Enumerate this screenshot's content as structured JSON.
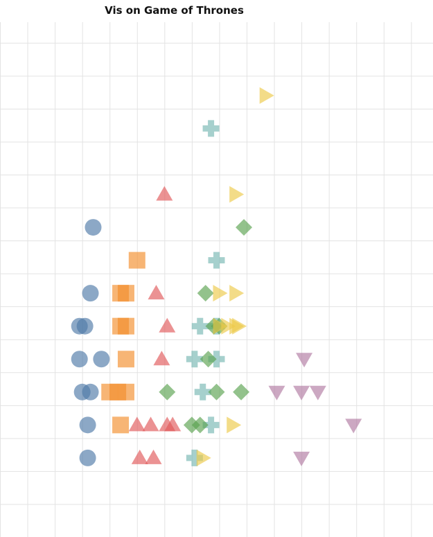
{
  "chart_data": {
    "type": "scatter",
    "title": "Vis on Game of Thrones",
    "xlabel": "",
    "ylabel": "",
    "grid": true,
    "xlim": [
      0,
      15.8
    ],
    "ylim": [
      0,
      16.3
    ],
    "series": [
      {
        "marker": "circle",
        "color": "#4e79a7",
        "points": [
          [
            3.2,
            2.4
          ],
          [
            3.2,
            3.4
          ],
          [
            3.0,
            4.4
          ],
          [
            3.3,
            4.4
          ],
          [
            2.9,
            5.4
          ],
          [
            3.7,
            5.4
          ],
          [
            2.9,
            6.4
          ],
          [
            3.1,
            6.4
          ],
          [
            3.3,
            7.4
          ],
          [
            3.4,
            9.4
          ]
        ]
      },
      {
        "marker": "square",
        "color": "#f28e2b",
        "points": [
          [
            4.4,
            3.4
          ],
          [
            4.0,
            4.4
          ],
          [
            4.3,
            4.4
          ],
          [
            4.6,
            4.4
          ],
          [
            4.6,
            5.4
          ],
          [
            4.4,
            6.4
          ],
          [
            4.6,
            6.4
          ],
          [
            4.4,
            7.4
          ],
          [
            4.6,
            7.4
          ],
          [
            5.0,
            8.4
          ]
        ]
      },
      {
        "marker": "triangle-up",
        "color": "#e15759",
        "points": [
          [
            5.1,
            2.4
          ],
          [
            5.6,
            2.4
          ],
          [
            5.0,
            3.4
          ],
          [
            5.5,
            3.4
          ],
          [
            6.1,
            3.4
          ],
          [
            6.3,
            3.4
          ],
          [
            5.9,
            5.4
          ],
          [
            6.1,
            6.4
          ],
          [
            5.7,
            7.4
          ],
          [
            6.0,
            10.4
          ]
        ]
      },
      {
        "marker": "plus",
        "color": "#76b7b2",
        "points": [
          [
            7.1,
            2.4
          ],
          [
            7.7,
            3.4
          ],
          [
            7.4,
            4.4
          ],
          [
            7.1,
            5.4
          ],
          [
            7.9,
            5.4
          ],
          [
            7.3,
            6.4
          ],
          [
            7.9,
            6.4
          ],
          [
            7.9,
            8.4
          ],
          [
            7.7,
            12.4
          ]
        ]
      },
      {
        "marker": "diamond",
        "color": "#59a14f",
        "points": [
          [
            6.1,
            4.4
          ],
          [
            7.0,
            3.4
          ],
          [
            7.3,
            3.4
          ],
          [
            7.9,
            4.4
          ],
          [
            8.8,
            4.4
          ],
          [
            7.6,
            5.4
          ],
          [
            7.8,
            6.4
          ],
          [
            8.0,
            6.4
          ],
          [
            7.5,
            7.4
          ],
          [
            8.9,
            9.4
          ]
        ]
      },
      {
        "marker": "triangle-right",
        "color": "#edc948",
        "points": [
          [
            7.4,
            2.4
          ],
          [
            8.5,
            3.4
          ],
          [
            8.0,
            6.4
          ],
          [
            8.3,
            6.4
          ],
          [
            8.6,
            6.4
          ],
          [
            8.7,
            6.4
          ],
          [
            8.0,
            7.4
          ],
          [
            8.6,
            7.4
          ],
          [
            8.6,
            10.4
          ],
          [
            9.7,
            13.4
          ]
        ]
      },
      {
        "marker": "triangle-down",
        "color": "#b07aa1",
        "points": [
          [
            11.0,
            2.4
          ],
          [
            12.9,
            3.4
          ],
          [
            10.1,
            4.4
          ],
          [
            11.0,
            4.4
          ],
          [
            11.6,
            4.4
          ],
          [
            11.1,
            5.4
          ]
        ]
      }
    ]
  }
}
